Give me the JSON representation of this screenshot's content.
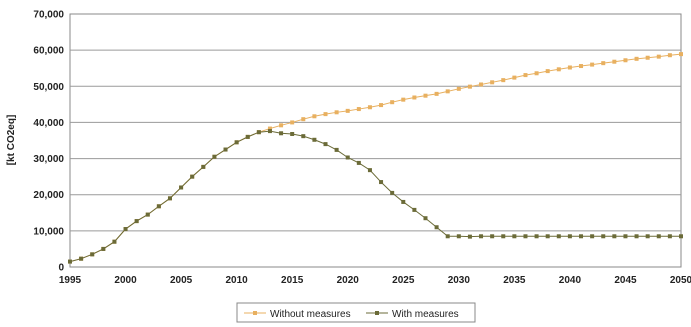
{
  "chart_data": {
    "type": "line",
    "title": "",
    "xlabel": "",
    "ylabel": "[kt CO2eq]",
    "xlim": [
      1995,
      2050
    ],
    "ylim": [
      0,
      70000
    ],
    "x_ticks": [
      1995,
      2000,
      2005,
      2010,
      2015,
      2020,
      2025,
      2030,
      2035,
      2040,
      2045,
      2050
    ],
    "y_ticks": [
      0,
      10000,
      20000,
      30000,
      40000,
      50000,
      60000,
      70000
    ],
    "x_tick_labels": [
      "1995",
      "2000",
      "2005",
      "2010",
      "2015",
      "2020",
      "2025",
      "2030",
      "2035",
      "2040",
      "2045",
      "2050"
    ],
    "y_tick_labels": [
      "0",
      "10,000",
      "20,000",
      "30,000",
      "40,000",
      "50,000",
      "60,000",
      "70,000"
    ],
    "grid": "horizontal",
    "legend_position": "bottom",
    "x": [
      1995,
      1996,
      1997,
      1998,
      1999,
      2000,
      2001,
      2002,
      2003,
      2004,
      2005,
      2006,
      2007,
      2008,
      2009,
      2010,
      2011,
      2012,
      2013,
      2014,
      2015,
      2016,
      2017,
      2018,
      2019,
      2020,
      2021,
      2022,
      2023,
      2024,
      2025,
      2026,
      2027,
      2028,
      2029,
      2030,
      2031,
      2032,
      2033,
      2034,
      2035,
      2036,
      2037,
      2038,
      2039,
      2040,
      2041,
      2042,
      2043,
      2044,
      2045,
      2046,
      2047,
      2048,
      2049,
      2050
    ],
    "series": [
      {
        "name": "Without measures",
        "color": "#e8b060",
        "values": [
          1500,
          2300,
          3500,
          5000,
          7000,
          10500,
          12700,
          14500,
          16800,
          19000,
          22000,
          25000,
          27700,
          30500,
          32500,
          34500,
          36000,
          37300,
          38300,
          39200,
          40000,
          40900,
          41700,
          42300,
          42800,
          43200,
          43700,
          44200,
          44800,
          45600,
          46300,
          46900,
          47400,
          47900,
          48600,
          49300,
          49900,
          50500,
          51100,
          51700,
          52400,
          53100,
          53600,
          54200,
          54700,
          55200,
          55600,
          56000,
          56400,
          56800,
          57200,
          57600,
          57900,
          58200,
          58600,
          58900
        ]
      },
      {
        "name": "With measures",
        "color": "#6b6b38",
        "values": [
          1500,
          2300,
          3500,
          5000,
          7000,
          10500,
          12700,
          14500,
          16800,
          19000,
          22000,
          25000,
          27700,
          30500,
          32500,
          34500,
          36000,
          37300,
          37600,
          37000,
          36800,
          36200,
          35200,
          34000,
          32400,
          30300,
          28800,
          26800,
          23500,
          20500,
          18000,
          15800,
          13500,
          11000,
          8500,
          8500,
          8400,
          8500,
          8500,
          8500,
          8500,
          8500,
          8500,
          8500,
          8500,
          8500,
          8500,
          8500,
          8500,
          8500,
          8500,
          8500,
          8500,
          8500,
          8500,
          8500
        ]
      }
    ]
  }
}
